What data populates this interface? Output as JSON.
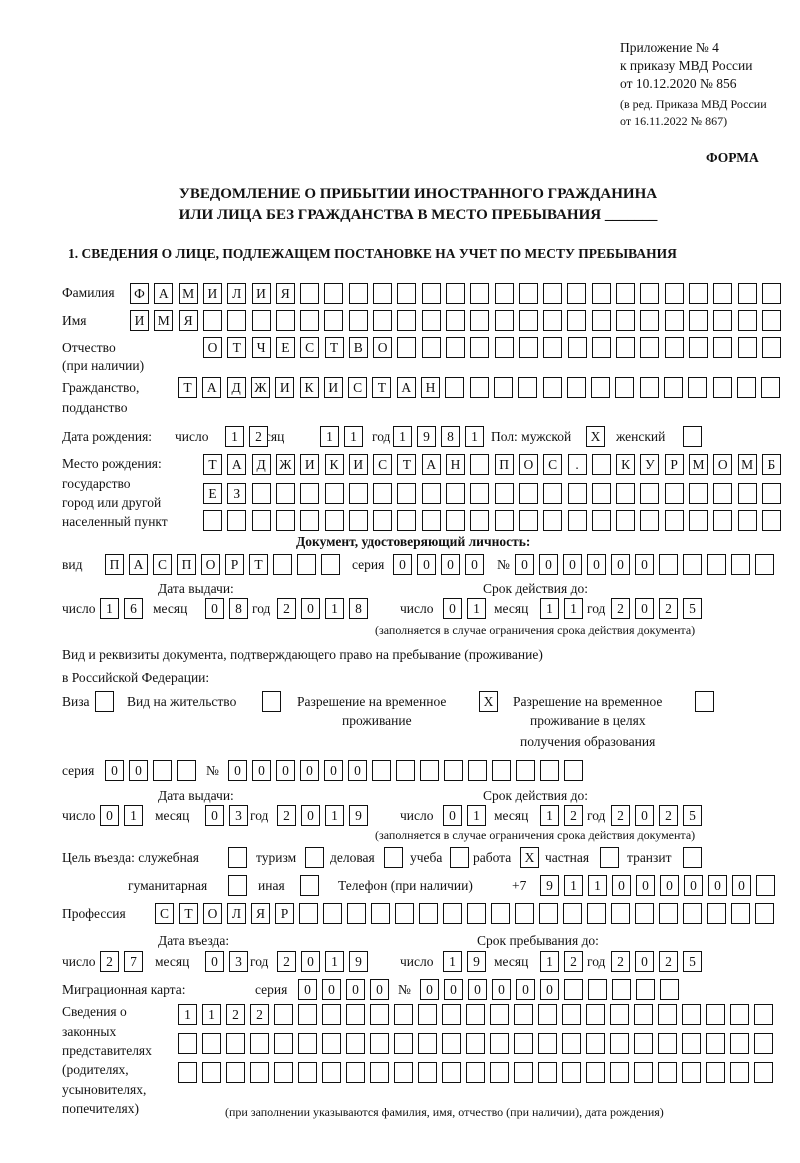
{
  "header": {
    "appendix": "Приложение № 4",
    "order": "к приказу МВД России",
    "order_date": "от 10.12.2020 № 856",
    "edition": "(в ред. Приказа МВД России",
    "edition_date": "от 16.11.2022 № 867)",
    "form_label": "ФОРМА",
    "title_line1": "УВЕДОМЛЕНИЕ О ПРИБЫТИИ ИНОСТРАННОГО ГРАЖДАНИНА",
    "title_line2": "ИЛИ ЛИЦА БЕЗ ГРАЖДАНСТВА В МЕСТО ПРЕБЫВАНИЯ _______"
  },
  "section1": {
    "title": "1. СВЕДЕНИЯ О ЛИЦЕ, ПОДЛЕЖАЩЕМ ПОСТАНОВКЕ НА УЧЕТ ПО МЕСТУ ПРЕБЫВАНИЯ",
    "labels": {
      "surname": "Фамилия",
      "name": "Имя",
      "patronymic": "Отчество",
      "patronymic_note": "(при наличии)",
      "citizenship": "Гражданство,",
      "citizenship2": "подданство",
      "birth_date": "Дата рождения:",
      "day": "число",
      "month": "месяц",
      "year": "год",
      "sex": "Пол: мужской",
      "female": "женский",
      "birth_place": "Место рождения:",
      "birth_place2": "государство",
      "birth_place3": "город или другой",
      "birth_place4": "населенный пункт",
      "id_doc": "Документ, удостоверяющий личность:",
      "kind": "вид",
      "series": "серия",
      "number": "№",
      "issue_date": "Дата выдачи:",
      "valid_until": "Срок действия до:",
      "validity_note": "(заполняется в случае ограничения срока действия документа)",
      "stay_doc": "Вид и реквизиты документа, подтверждающего право на пребывание (проживание)",
      "stay_doc2": "в Российской Федерации:",
      "visa": "Виза",
      "residence": "Вид на жительство",
      "temp_res": "Разрешение на временное",
      "temp_res2": "проживание",
      "temp_res_edu": "Разрешение на временное",
      "temp_res_edu2": "проживание в целях",
      "temp_res_edu3": "получения образования",
      "purpose": "Цель въезда: служебная",
      "tourism": "туризм",
      "business": "деловая",
      "study": "учеба",
      "work": "работа",
      "private": "частная",
      "transit": "транзит",
      "humanitarian": "гуманитарная",
      "other": "иная",
      "phone": "Телефон (при наличии)",
      "phone_prefix": "+7",
      "profession": "Профессия",
      "entry_date": "Дата въезда:",
      "stay_until": "Срок пребывания до:",
      "migration_card": "Миграционная карта:",
      "reps1": "Сведения о",
      "reps2": "законных",
      "reps3": "представителях",
      "reps4": "(родителях,",
      "reps5": "усыновителях,",
      "reps6": "попечителях)",
      "reps_note": "(при заполнении указываются фамилия, имя, отчество (при наличии), дата рождения)"
    },
    "fields": {
      "surname": "ФАМИЛИЯ",
      "name": "ИМЯ",
      "patronymic": "ОТЧЕСТВО",
      "citizenship": "ТАДЖИКИСТАН",
      "birth_day": "12",
      "birth_month": "11",
      "birth_year": "1981",
      "sex_male": "X",
      "sex_female": "",
      "birth_place_1": "ТАДЖИКИСТАН ПОС. КУРМОМБ",
      "birth_place_2": "ЕЗ",
      "birth_place_3": "",
      "id_kind": "ПАСПОРТ",
      "id_series": "0000",
      "id_number": "000000",
      "id_issue_day": "16",
      "id_issue_month": "08",
      "id_issue_year": "2018",
      "id_valid_day": "01",
      "id_valid_month": "11",
      "id_valid_year": "2025",
      "visa": "",
      "residence_permit": "",
      "temp_residence": "X",
      "temp_residence_edu": "",
      "stay_series": "00",
      "stay_number": "000000",
      "stay_issue_day": "01",
      "stay_issue_month": "03",
      "stay_issue_year": "2019",
      "stay_valid_day": "01",
      "stay_valid_month": "12",
      "stay_valid_year": "2025",
      "purpose_official": "",
      "purpose_tourism": "",
      "purpose_business": "",
      "purpose_study": "",
      "purpose_work": "X",
      "purpose_private": "",
      "purpose_transit": "",
      "purpose_humanitarian": "",
      "purpose_other": "",
      "phone": "911000000",
      "profession": "СТОЛЯР",
      "entry_day": "27",
      "entry_month": "03",
      "entry_year": "2019",
      "stay_until_day": "19",
      "stay_until_month": "12",
      "stay_until_year": "2025",
      "mig_series": "0000",
      "mig_number": "000000",
      "reps_1": "1122",
      "reps_2": "",
      "reps_3": ""
    }
  }
}
